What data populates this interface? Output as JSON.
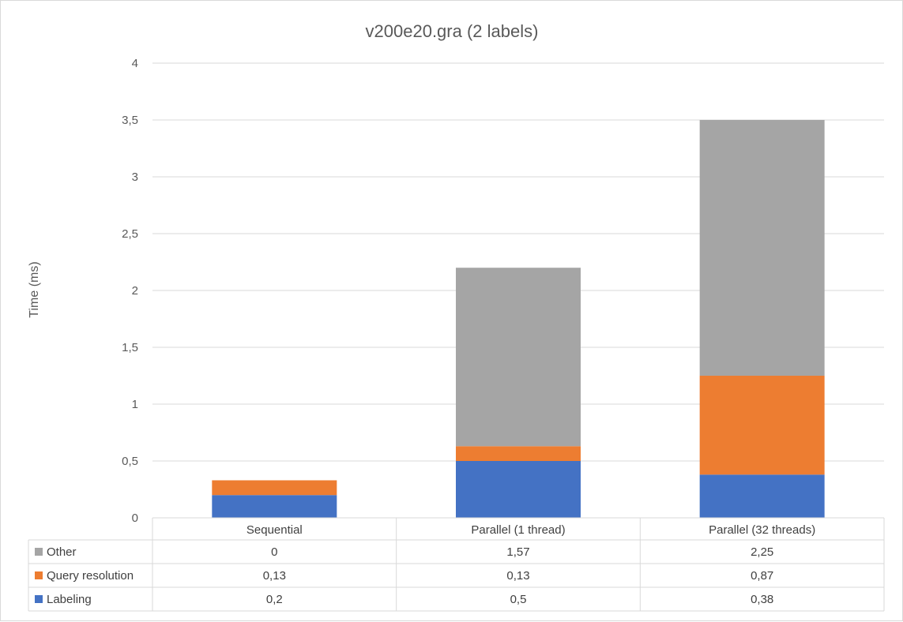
{
  "chart_data": {
    "type": "bar",
    "stacked": true,
    "title": "v200e20.gra (2 labels)",
    "xlabel": "",
    "ylabel": "Time (ms)",
    "ylim": [
      0,
      4
    ],
    "yticks": [
      "0",
      "0,5",
      "1",
      "1,5",
      "2",
      "2,5",
      "3",
      "3,5",
      "4"
    ],
    "grid": true,
    "legend": "data-table",
    "categories": [
      "Sequential",
      "Parallel (1 thread)",
      "Parallel (32 threads)"
    ],
    "series": [
      {
        "name": "Labeling",
        "values": [
          0.2,
          0.5,
          0.38
        ],
        "labels": [
          "0,2",
          "0,5",
          "0,38"
        ],
        "color": "#4472c4"
      },
      {
        "name": "Query resolution",
        "values": [
          0.13,
          0.13,
          0.87
        ],
        "labels": [
          "0,13",
          "0,13",
          "0,87"
        ],
        "color": "#ed7d31"
      },
      {
        "name": "Other",
        "values": [
          0,
          1.57,
          2.25
        ],
        "labels": [
          "0",
          "1,57",
          "2,25"
        ],
        "color": "#a5a5a5"
      }
    ],
    "table_row_order": [
      "Other",
      "Query resolution",
      "Labeling"
    ]
  }
}
